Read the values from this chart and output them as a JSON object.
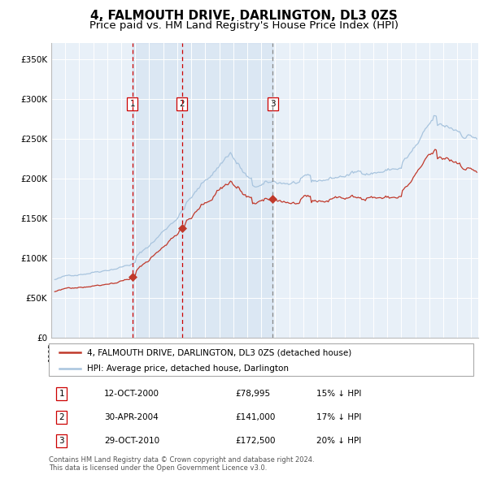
{
  "title": "4, FALMOUTH DRIVE, DARLINGTON, DL3 0ZS",
  "subtitle": "Price paid vs. HM Land Registry's House Price Index (HPI)",
  "title_fontsize": 11,
  "subtitle_fontsize": 9.5,
  "ylim": [
    0,
    370000
  ],
  "yticks": [
    0,
    50000,
    100000,
    150000,
    200000,
    250000,
    300000,
    350000
  ],
  "ytick_labels": [
    "£0",
    "£50K",
    "£100K",
    "£150K",
    "£200K",
    "£250K",
    "£300K",
    "£350K"
  ],
  "hpi_color": "#a8c4de",
  "property_color": "#c0392b",
  "background_color": "#ffffff",
  "plot_bg_color": "#e8f0f8",
  "grid_color": "#ffffff",
  "sale1_t": 2000.79,
  "sale1_p": 78995,
  "sale2_t": 2004.33,
  "sale2_p": 141000,
  "sale3_t": 2010.83,
  "sale3_p": 172500,
  "sales": [
    {
      "index": 1,
      "date_num": 2000.79,
      "price": 78995,
      "label": "1"
    },
    {
      "index": 2,
      "date_num": 2004.33,
      "price": 141000,
      "label": "2"
    },
    {
      "index": 3,
      "date_num": 2010.83,
      "price": 172500,
      "label": "3"
    }
  ],
  "shaded_region": [
    2000.79,
    2010.83
  ],
  "legend_entries": [
    "4, FALMOUTH DRIVE, DARLINGTON, DL3 0ZS (detached house)",
    "HPI: Average price, detached house, Darlington"
  ],
  "table_rows": [
    {
      "num": "1",
      "date": "12-OCT-2000",
      "price": "£78,995",
      "hpi": "15% ↓ HPI"
    },
    {
      "num": "2",
      "date": "30-APR-2004",
      "price": "£141,000",
      "hpi": "17% ↓ HPI"
    },
    {
      "num": "3",
      "date": "29-OCT-2010",
      "price": "£172,500",
      "hpi": "20% ↓ HPI"
    }
  ],
  "footnote": "Contains HM Land Registry data © Crown copyright and database right 2024.\nThis data is licensed under the Open Government Licence v3.0.",
  "xmin": 1995.25,
  "xmax": 2025.5
}
